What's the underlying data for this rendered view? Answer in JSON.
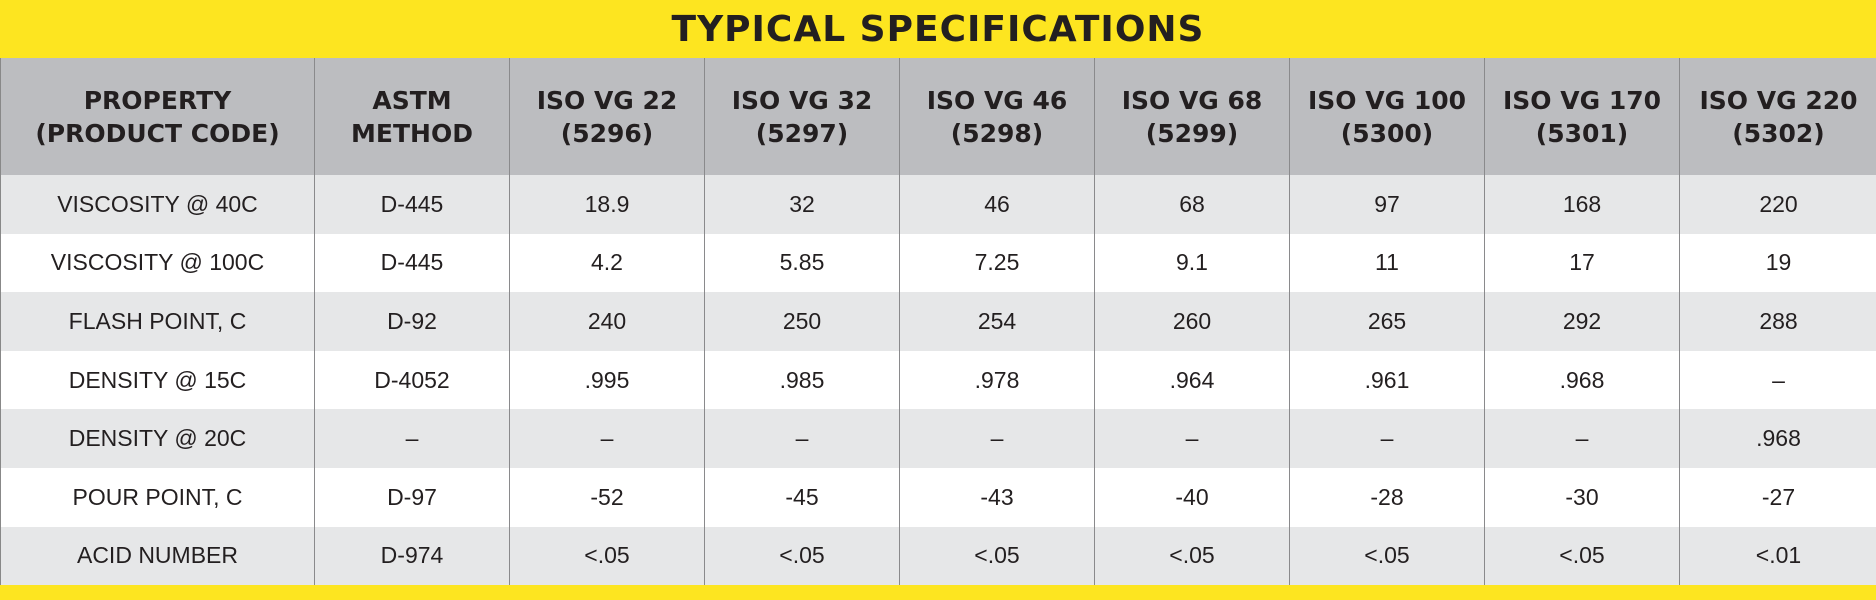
{
  "header": {
    "title": "TYPICAL SPECIFICATIONS"
  },
  "table": {
    "columns": [
      [
        "PROPERTY",
        "(PRODUCT CODE)"
      ],
      [
        "ASTM",
        "METHOD"
      ],
      [
        "ISO VG 22",
        "(5296)"
      ],
      [
        "ISO VG 32",
        "(5297)"
      ],
      [
        "ISO VG 46",
        "(5298)"
      ],
      [
        "ISO VG 68",
        "(5299)"
      ],
      [
        "ISO VG 100",
        "(5300)"
      ],
      [
        "ISO VG 170",
        "(5301)"
      ],
      [
        "ISO VG 220",
        "(5302)"
      ]
    ],
    "rows": [
      [
        "VISCOSITY @ 40C",
        "D-445",
        "18.9",
        "32",
        "46",
        "68",
        "97",
        "168",
        "220"
      ],
      [
        "VISCOSITY @ 100C",
        "D-445",
        "4.2",
        "5.85",
        "7.25",
        "9.1",
        "11",
        "17",
        "19"
      ],
      [
        "FLASH POINT, C",
        "D-92",
        "240",
        "250",
        "254",
        "260",
        "265",
        "292",
        "288"
      ],
      [
        "DENSITY @ 15C",
        "D-4052",
        ".995",
        ".985",
        ".978",
        ".964",
        ".961",
        ".968",
        "–"
      ],
      [
        "DENSITY @ 20C",
        "–",
        "–",
        "–",
        "–",
        "–",
        "–",
        "–",
        ".968"
      ],
      [
        "POUR POINT, C",
        "D-97",
        "-52",
        "-45",
        "-43",
        "-40",
        "-28",
        "-30",
        "-27"
      ],
      [
        "ACID NUMBER",
        "D-974",
        "<.05",
        "<.05",
        "<.05",
        "<.05",
        "<.05",
        "<.05",
        "<.01"
      ]
    ]
  }
}
